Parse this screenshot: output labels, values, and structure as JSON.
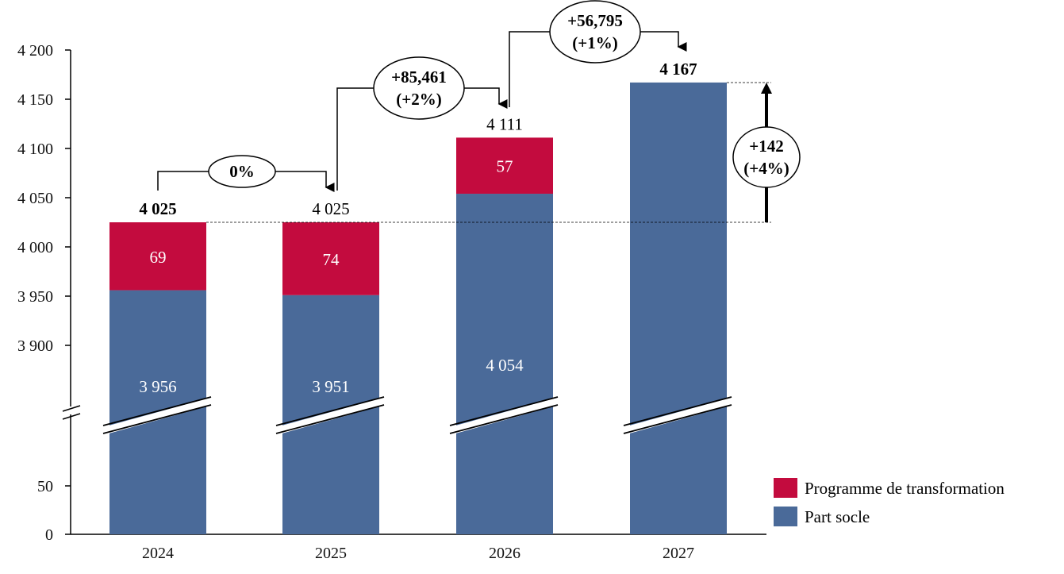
{
  "chart_data": {
    "type": "bar",
    "stacked": true,
    "broken_y_axis": true,
    "categories": [
      "2024",
      "2025",
      "2026",
      "2027"
    ],
    "series": [
      {
        "name": "Part socle",
        "values": [
          3956,
          3951,
          4054,
          4167
        ],
        "color": "#4a6a99",
        "labels": [
          "3 956",
          "3 951",
          "4 054",
          ""
        ]
      },
      {
        "name": "Programme de transformation",
        "values": [
          69,
          74,
          57,
          0
        ],
        "color": "#c30b3e",
        "labels": [
          "69",
          "74",
          "57",
          ""
        ]
      }
    ],
    "totals": [
      "4 025",
      "4 025",
      "4 111",
      "4 167"
    ],
    "totals_bold": [
      true,
      false,
      false,
      true
    ],
    "y_ticks_upper": [
      {
        "v": 4200,
        "label": "4 200"
      },
      {
        "v": 4150,
        "label": "4 150"
      },
      {
        "v": 4100,
        "label": "4 100"
      },
      {
        "v": 4050,
        "label": "4 050"
      },
      {
        "v": 4000,
        "label": "4 000"
      },
      {
        "v": 3950,
        "label": "3 950"
      },
      {
        "v": 3900,
        "label": "3 900"
      }
    ],
    "y_ticks_lower": [
      {
        "v": 50,
        "label": "50"
      },
      {
        "v": 0,
        "label": "0"
      }
    ],
    "annotations": [
      {
        "from": "2024",
        "to": "2025",
        "lines": [
          "0%"
        ]
      },
      {
        "from": "2025",
        "to": "2026",
        "lines": [
          "+85,461",
          "(+2%)"
        ]
      },
      {
        "from": "2026",
        "to": "2027",
        "lines": [
          "+56,795",
          "(+1%)"
        ]
      },
      {
        "from": "2024",
        "to": "2027",
        "lines": [
          "+142",
          "(+4%)"
        ]
      }
    ],
    "legend": {
      "position": "bottom-right",
      "entries": [
        "Programme de transformation",
        "Part socle"
      ]
    },
    "grid": false,
    "title": "",
    "xlabel": "",
    "ylabel": ""
  }
}
